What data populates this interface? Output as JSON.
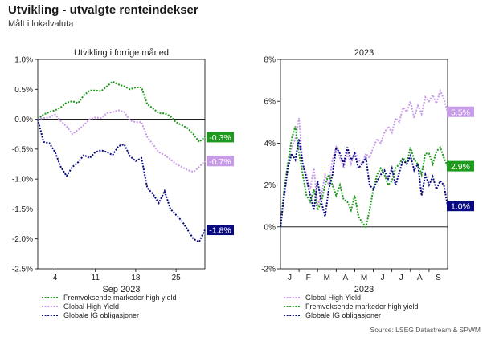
{
  "title": "Utvikling - utvalgte renteindekser",
  "subtitle": "Målt i lokalvaluta",
  "source": "Source: LSEG Datastream & SPWM",
  "colors": {
    "em_hy": "#1e9a1e",
    "global_hy": "#c79be8",
    "global_ig": "#0a0a80"
  },
  "chart_data": [
    {
      "type": "line",
      "title": "Utvikling i forrige måned",
      "xlabel": "Sep 2023",
      "ylabel": "",
      "x_ticks": [
        4,
        11,
        18,
        25
      ],
      "x_tick_labels": [
        "4",
        "11",
        "18",
        "25"
      ],
      "xlim": [
        1,
        30
      ],
      "ylim": [
        -2.5,
        1.0
      ],
      "y_ticks": [
        -2.5,
        -2.0,
        -1.5,
        -1.0,
        -0.5,
        0.0,
        0.5,
        1.0
      ],
      "y_tick_labels": [
        "-2.5%",
        "-2.0%",
        "-1.5%",
        "-1.0%",
        "-0.5%",
        "0.0%",
        "0.5%",
        "1.0%"
      ],
      "x": [
        1,
        2,
        3,
        4,
        5,
        6,
        7,
        8,
        9,
        10,
        11,
        12,
        13,
        14,
        15,
        16,
        17,
        18,
        19,
        20,
        21,
        22,
        23,
        24,
        25,
        26,
        27,
        28,
        29,
        30
      ],
      "series": [
        {
          "name": "Fremvoksende markeder high yield",
          "color": "#1e9a1e",
          "end_label": "-0.3%",
          "values": [
            0.0,
            0.08,
            0.12,
            0.15,
            0.2,
            0.28,
            0.3,
            0.27,
            0.4,
            0.48,
            0.48,
            0.47,
            0.55,
            0.63,
            0.58,
            0.55,
            0.5,
            0.53,
            0.53,
            0.25,
            0.18,
            0.1,
            0.1,
            0.05,
            -0.05,
            -0.1,
            -0.15,
            -0.25,
            -0.38,
            -0.3
          ]
        },
        {
          "name": "Global High Yield",
          "color": "#c79be8",
          "end_label": "-0.7%",
          "values": [
            0.0,
            0.02,
            0.03,
            0.08,
            -0.03,
            -0.12,
            -0.25,
            -0.18,
            -0.1,
            0.0,
            0.03,
            0.02,
            0.1,
            0.12,
            0.15,
            0.12,
            -0.02,
            -0.05,
            -0.05,
            -0.3,
            -0.42,
            -0.55,
            -0.6,
            -0.67,
            -0.75,
            -0.8,
            -0.85,
            -0.88,
            -0.8,
            -0.7
          ]
        },
        {
          "name": "Globale IG obligasjoner",
          "color": "#0a0a80",
          "end_label": "-1.8%",
          "values": [
            0.0,
            -0.38,
            -0.4,
            -0.55,
            -0.8,
            -0.95,
            -0.8,
            -0.72,
            -0.6,
            -0.65,
            -0.55,
            -0.52,
            -0.55,
            -0.6,
            -0.45,
            -0.42,
            -0.62,
            -0.7,
            -0.65,
            -1.15,
            -1.25,
            -1.4,
            -1.2,
            -1.5,
            -1.6,
            -1.7,
            -1.85,
            -2.0,
            -2.05,
            -1.85
          ]
        }
      ],
      "legend": [
        "Fremvoksende markeder high yield",
        "Global High Yield",
        "Globale IG obligasjoner"
      ],
      "legend_position": "bottom",
      "grid": false
    },
    {
      "type": "line",
      "title": "2023",
      "xlabel": "2023",
      "ylabel": "",
      "x_ticks": [
        0.5,
        1.5,
        2.5,
        3.5,
        4.5,
        5.5,
        6.5,
        7.5,
        8.5
      ],
      "x_tick_labels": [
        "J",
        "F",
        "M",
        "A",
        "M",
        "J",
        "J",
        "A",
        "S"
      ],
      "xlim": [
        0,
        9
      ],
      "ylim": [
        -2,
        8
      ],
      "y_ticks": [
        -2,
        0,
        2,
        4,
        6,
        8
      ],
      "y_tick_labels": [
        "-2%",
        "0%",
        "2%",
        "4%",
        "6%",
        "8%"
      ],
      "x": [
        0.0,
        0.2,
        0.4,
        0.6,
        0.8,
        1.0,
        1.2,
        1.4,
        1.6,
        1.8,
        2.0,
        2.2,
        2.4,
        2.6,
        2.8,
        3.0,
        3.2,
        3.4,
        3.6,
        3.8,
        4.0,
        4.2,
        4.4,
        4.6,
        4.8,
        5.0,
        5.2,
        5.4,
        5.6,
        5.8,
        6.0,
        6.2,
        6.4,
        6.6,
        6.8,
        7.0,
        7.2,
        7.4,
        7.6,
        7.8,
        8.0,
        8.2,
        8.4,
        8.6,
        8.8,
        9.0
      ],
      "series": [
        {
          "name": "Global High Yield",
          "color": "#c79be8",
          "end_label": "5.5%",
          "values": [
            0.0,
            1.5,
            3.0,
            3.8,
            4.2,
            5.2,
            3.0,
            2.5,
            1.8,
            2.8,
            1.0,
            1.5,
            2.5,
            2.0,
            3.2,
            3.8,
            3.3,
            2.8,
            3.5,
            3.0,
            3.6,
            3.2,
            3.0,
            3.5,
            3.3,
            3.8,
            4.2,
            4.0,
            4.5,
            4.8,
            4.5,
            5.2,
            5.0,
            5.7,
            5.5,
            6.0,
            5.2,
            5.8,
            5.4,
            6.2,
            6.0,
            6.3,
            5.9,
            6.5,
            6.1,
            5.5
          ]
        },
        {
          "name": "Fremvoksende markeder high yield",
          "color": "#1e9a1e",
          "end_label": "2.9%",
          "values": [
            0.0,
            1.8,
            3.0,
            4.2,
            4.8,
            3.5,
            2.5,
            1.5,
            1.2,
            1.8,
            0.8,
            1.2,
            2.0,
            2.5,
            2.0,
            1.5,
            2.0,
            1.3,
            1.2,
            0.8,
            1.5,
            0.5,
            0.2,
            0.0,
            0.8,
            1.8,
            2.5,
            2.8,
            2.5,
            2.0,
            2.2,
            2.8,
            3.0,
            3.3,
            3.0,
            3.8,
            3.2,
            3.0,
            2.5,
            3.5,
            3.5,
            3.0,
            3.6,
            3.8,
            3.3,
            2.9
          ]
        },
        {
          "name": "Globale IG obligasjoner",
          "color": "#0a0a80",
          "end_label": "1.0%",
          "values": [
            0.0,
            1.5,
            2.8,
            3.5,
            3.2,
            4.2,
            3.0,
            2.3,
            1.5,
            0.8,
            2.2,
            1.2,
            0.5,
            1.8,
            2.5,
            3.8,
            3.5,
            3.0,
            3.8,
            3.2,
            3.5,
            2.8,
            3.0,
            3.3,
            2.0,
            1.8,
            2.2,
            2.5,
            2.7,
            2.3,
            2.8,
            2.0,
            2.6,
            3.2,
            3.0,
            3.4,
            2.7,
            3.0,
            1.5,
            2.5,
            2.0,
            2.4,
            1.8,
            2.2,
            2.0,
            1.0
          ]
        }
      ],
      "legend": [
        "Global High Yield",
        "Fremvoksende markeder high yield",
        "Globale IG obligasjoner"
      ],
      "legend_position": "bottom",
      "grid": false
    }
  ]
}
